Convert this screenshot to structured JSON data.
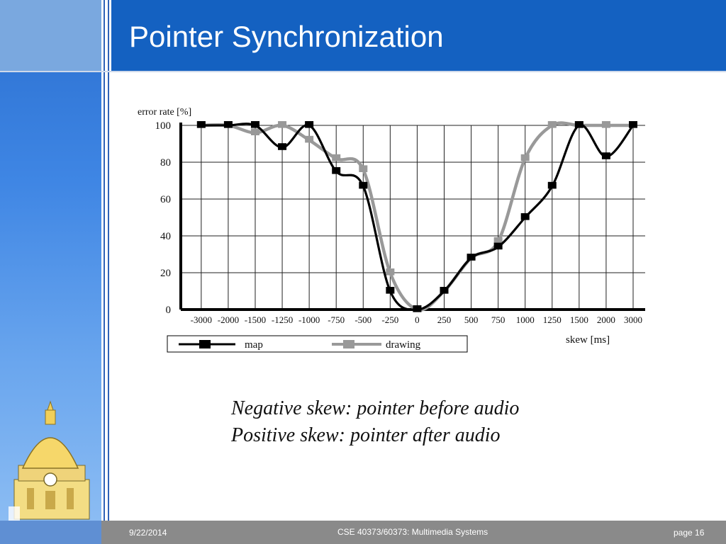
{
  "slide": {
    "title": "Pointer Synchronization",
    "caption_lines": [
      "Negative skew: pointer before audio",
      "Positive skew: pointer after audio"
    ]
  },
  "footer": {
    "date": "9/22/2014",
    "course": "CSE 40373/60373: Multimedia Systems",
    "page": "page 16"
  },
  "colors": {
    "header": "#1461c1",
    "map_series": "#000000",
    "drawing_series": "#999999"
  },
  "logo_icon": "golden-dome-icon",
  "chart_data": {
    "type": "line",
    "ylabel": "error rate [%]",
    "xlabel": "skew [ms]",
    "categories": [
      "-3000",
      "-2000",
      "-1500",
      "-1250",
      "-1000",
      "-750",
      "-500",
      "-250",
      "0",
      "250",
      "500",
      "750",
      "1000",
      "1250",
      "1500",
      "2000",
      "3000"
    ],
    "yticks": [
      0,
      20,
      40,
      60,
      80,
      100
    ],
    "ylim": [
      0,
      100
    ],
    "grid": true,
    "legend_position": "bottom",
    "series": [
      {
        "name": "map",
        "values": [
          100,
          100,
          100,
          88,
          100,
          75,
          67,
          10,
          0,
          10,
          28,
          34,
          50,
          67,
          100,
          83,
          100
        ]
      },
      {
        "name": "drawing",
        "values": [
          100,
          100,
          96,
          100,
          92,
          82,
          76,
          20,
          0,
          10,
          28,
          37,
          82,
          100,
          100,
          100,
          100
        ]
      }
    ]
  }
}
